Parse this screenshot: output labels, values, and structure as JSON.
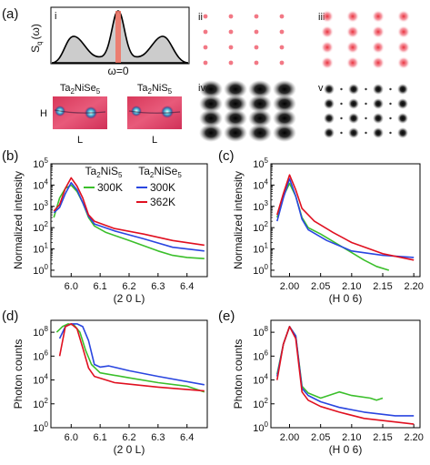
{
  "figure": {
    "panel_labels": [
      "(a)",
      "(b)",
      "(c)",
      "(d)",
      "(e)"
    ],
    "subpanel_labels": [
      "i",
      "ii",
      "iii",
      "iv",
      "v"
    ],
    "schematic": {
      "ylabel": "S",
      "ylabel_sub": "q",
      "ylabel_arg": "(ω)",
      "xmarker": "ω=0"
    },
    "images": [
      {
        "label_main": "Ta",
        "label_sub1": "2",
        "label_mid": "NiSe",
        "label_sub2": "5",
        "axis_h": "H",
        "axis_l": "L"
      },
      {
        "label_main": "Ta",
        "label_sub1": "2",
        "label_mid": "NiS",
        "label_sub2": "5",
        "axis_l": "L"
      }
    ],
    "legend": {
      "group1_main": "Ta",
      "group1_sub1": "2",
      "group1_mid": "NiS",
      "group1_sub2": "5",
      "group2_main": "Ta",
      "group2_sub1": "2",
      "group2_mid": "NiSe",
      "group2_sub2": "5",
      "entries": [
        "300K",
        "300K",
        "362K"
      ]
    },
    "colors": {
      "green": "#3bbf2b",
      "blue": "#2a46e0",
      "red": "#e01020",
      "pink": "#e04060"
    }
  },
  "chart_data": [
    {
      "panel": "(b)",
      "type": "line",
      "xlabel": "(2 0 L)",
      "ylabel": "Normalized intensity",
      "log_y": true,
      "xlim": [
        5.93,
        6.47
      ],
      "ylim": [
        0.5,
        100000
      ],
      "xticks": [
        6.0,
        6.1,
        6.2,
        6.3,
        6.4
      ],
      "xtick_labels": [
        "6.0",
        "6.1",
        "6.2",
        "6.3",
        "6.4"
      ],
      "yticks": [
        1,
        10,
        100,
        1000,
        10000,
        100000
      ],
      "series": [
        {
          "name": "300K",
          "color": "green",
          "x": [
            5.94,
            5.96,
            5.98,
            6.0,
            6.02,
            6.04,
            6.06,
            6.08,
            6.12,
            6.2,
            6.3,
            6.35,
            6.4,
            6.46
          ],
          "y": [
            300,
            2500,
            7000,
            10000,
            5000,
            1500,
            300,
            120,
            60,
            25,
            8,
            5,
            4,
            3.5
          ]
        },
        {
          "name": "300K",
          "color": "blue",
          "x": [
            5.94,
            5.96,
            5.98,
            6.0,
            6.02,
            6.04,
            6.06,
            6.08,
            6.15,
            6.25,
            6.35,
            6.46
          ],
          "y": [
            500,
            900,
            4000,
            13000,
            6000,
            1500,
            350,
            150,
            70,
            30,
            12,
            8
          ]
        },
        {
          "name": "362K",
          "color": "red",
          "x": [
            5.94,
            5.96,
            5.98,
            6.0,
            6.02,
            6.04,
            6.06,
            6.08,
            6.15,
            6.25,
            6.35,
            6.46
          ],
          "y": [
            600,
            1200,
            7000,
            22000,
            9000,
            2500,
            400,
            200,
            90,
            50,
            25,
            15
          ]
        }
      ]
    },
    {
      "panel": "(c)",
      "type": "line",
      "xlabel": "(H 0 6)",
      "ylabel": "Normalized intensity",
      "log_y": true,
      "xlim": [
        1.97,
        2.21
      ],
      "ylim": [
        0.5,
        100000
      ],
      "xticks": [
        2.0,
        2.05,
        2.1,
        2.15,
        2.2
      ],
      "xtick_labels": [
        "2.00",
        "2.05",
        "2.10",
        "2.15",
        "2.20"
      ],
      "yticks": [
        1,
        10,
        100,
        1000,
        10000,
        100000
      ],
      "series": [
        {
          "name": "300K",
          "color": "green",
          "x": [
            1.98,
            1.99,
            2.0,
            2.01,
            2.02,
            2.03,
            2.05,
            2.08,
            2.12,
            2.14,
            2.16
          ],
          "y": [
            300,
            3000,
            12000,
            3000,
            300,
            100,
            50,
            15,
            3,
            1.5,
            1
          ]
        },
        {
          "name": "300K",
          "color": "blue",
          "x": [
            1.98,
            1.99,
            2.0,
            2.01,
            2.02,
            2.03,
            2.06,
            2.1,
            2.15,
            2.2
          ],
          "y": [
            200,
            2500,
            20000,
            3000,
            250,
            80,
            25,
            8,
            5,
            4
          ]
        },
        {
          "name": "362K",
          "color": "red",
          "x": [
            1.98,
            1.99,
            2.0,
            2.01,
            2.02,
            2.04,
            2.07,
            2.1,
            2.15,
            2.2
          ],
          "y": [
            400,
            4000,
            30000,
            6000,
            800,
            200,
            60,
            20,
            6,
            3
          ]
        }
      ]
    },
    {
      "panel": "(d)",
      "type": "line",
      "xlabel": "(2 0 L)",
      "ylabel": "Photon counts",
      "log_y": true,
      "xlim": [
        5.93,
        6.47
      ],
      "ylim": [
        1,
        1000000000
      ],
      "xticks": [
        6.0,
        6.1,
        6.2,
        6.3,
        6.4
      ],
      "xtick_labels": [
        "6.0",
        "6.1",
        "6.2",
        "6.3",
        "6.4"
      ],
      "yticks": [
        1,
        100,
        10000,
        1000000,
        100000000
      ],
      "ytick_exps": [
        "0",
        "2",
        "4",
        "6",
        "8"
      ],
      "series": [
        {
          "name": "300K",
          "color": "green",
          "x": [
            5.95,
            5.97,
            5.99,
            6.01,
            6.03,
            6.05,
            6.07,
            6.1,
            6.2,
            6.3,
            6.4,
            6.46
          ],
          "y": [
            100000000,
            300000000,
            500000000,
            400000000,
            100000000,
            3000000,
            200000,
            40000,
            15000,
            6000,
            3000,
            1000
          ]
        },
        {
          "name": "300K",
          "color": "blue",
          "x": [
            5.96,
            5.98,
            6.0,
            6.02,
            6.04,
            6.06,
            6.08,
            6.1,
            6.13,
            6.2,
            6.3,
            6.46
          ],
          "y": [
            30000000,
            300000000,
            500000000,
            500000000,
            300000000,
            20000000,
            200000,
            120000,
            150000,
            60000,
            20000,
            4000
          ]
        },
        {
          "name": "362K",
          "color": "red",
          "x": [
            5.96,
            5.98,
            6.0,
            6.02,
            6.04,
            6.06,
            6.08,
            6.15,
            6.3,
            6.46
          ],
          "y": [
            1000000,
            300000000,
            500000000,
            200000000,
            5000000,
            100000,
            20000,
            6000,
            2500,
            1200
          ]
        }
      ]
    },
    {
      "panel": "(e)",
      "type": "line",
      "xlabel": "(H 0 6)",
      "ylabel": "Photon counts",
      "log_y": true,
      "xlim": [
        1.97,
        2.21
      ],
      "ylim": [
        1,
        1000000000
      ],
      "xticks": [
        2.0,
        2.05,
        2.1,
        2.15,
        2.2
      ],
      "xtick_labels": [
        "2.00",
        "2.05",
        "2.10",
        "2.15",
        "2.20"
      ],
      "yticks": [
        1,
        100,
        10000,
        1000000,
        100000000
      ],
      "ytick_exps": [
        "0",
        "2",
        "4",
        "6",
        "8"
      ],
      "series": [
        {
          "name": "300K",
          "color": "green",
          "x": [
            1.98,
            1.99,
            2.0,
            2.01,
            2.02,
            2.03,
            2.05,
            2.08,
            2.1,
            2.13,
            2.14,
            2.15
          ],
          "y": [
            30000,
            10000000,
            300000000,
            50000000,
            3000,
            800,
            300,
            1000,
            500,
            300,
            200,
            300
          ]
        },
        {
          "name": "300K",
          "color": "blue",
          "x": [
            1.98,
            1.99,
            2.0,
            2.01,
            2.02,
            2.03,
            2.05,
            2.08,
            2.12,
            2.17,
            2.2
          ],
          "y": [
            20000,
            10000000,
            300000000,
            50000000,
            2000,
            500,
            150,
            50,
            20,
            10,
            10
          ]
        },
        {
          "name": "362K",
          "color": "red",
          "x": [
            1.98,
            1.99,
            2.0,
            2.01,
            2.02,
            2.03,
            2.05,
            2.08,
            2.12,
            2.17,
            2.2
          ],
          "y": [
            10000,
            10000000,
            300000000,
            30000000,
            1000,
            200,
            60,
            20,
            6,
            3,
            2
          ]
        }
      ]
    }
  ]
}
